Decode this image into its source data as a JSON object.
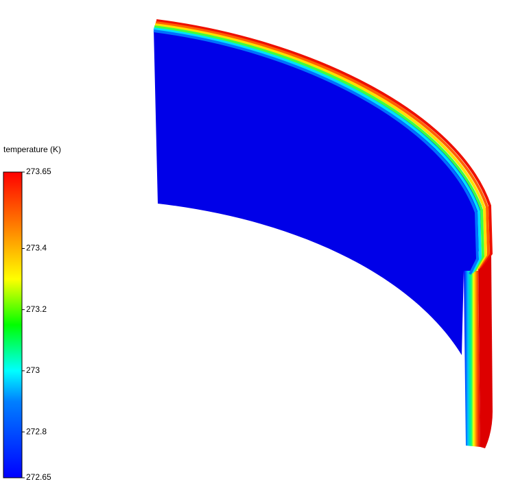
{
  "colorbar": {
    "title": "temperature (K)",
    "range": [
      272.65,
      273.65
    ],
    "ticks": [
      272.65,
      272.8,
      273,
      273.2,
      273.4,
      273.65
    ]
  }
}
